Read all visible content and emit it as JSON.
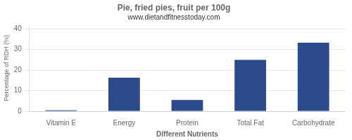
{
  "chart_data": {
    "type": "bar",
    "title": "Pie, fried pies, fruit per 100g",
    "subtitle": "www.dietandfitnesstoday.com",
    "xlabel": "Different Nutrients",
    "ylabel": "Percentage of RDH (%)",
    "categories": [
      "Vitamin E",
      "Energy",
      "Protein",
      "Total Fat",
      "Carbohydrate"
    ],
    "values": [
      0.5,
      16.3,
      5.5,
      25.0,
      33.3
    ],
    "color": "#2d4a8a",
    "ylim": [
      0,
      42
    ],
    "yticks": [
      0,
      10,
      20,
      30,
      40
    ],
    "grid": true
  }
}
